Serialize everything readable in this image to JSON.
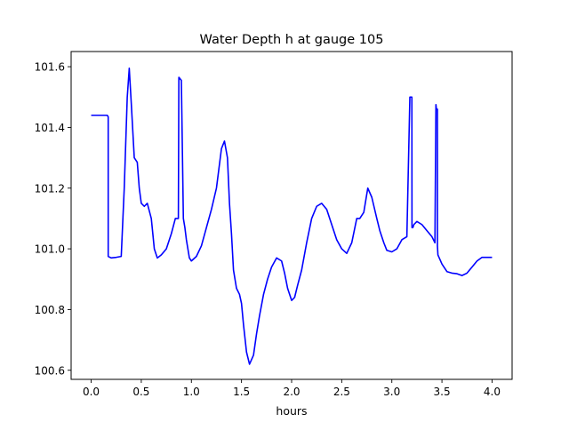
{
  "chart_data": {
    "type": "line",
    "title": "Water Depth h at gauge 105",
    "xlabel": "hours",
    "ylabel": "",
    "xlim": [
      -0.2,
      4.2
    ],
    "ylim": [
      100.57,
      101.65
    ],
    "xticks": [
      0.0,
      0.5,
      1.0,
      1.5,
      2.0,
      2.5,
      3.0,
      3.5,
      4.0
    ],
    "xtick_labels": [
      "0.0",
      "0.5",
      "1.0",
      "1.5",
      "2.0",
      "2.5",
      "3.0",
      "3.5",
      "4.0"
    ],
    "yticks": [
      100.6,
      100.8,
      101.0,
      101.2,
      101.4,
      101.6
    ],
    "ytick_labels": [
      "100.6",
      "100.8",
      "101.0",
      "101.2",
      "101.4",
      "101.6"
    ],
    "grid": false,
    "series": [
      {
        "color": "#0000ff",
        "x": [
          0.0,
          0.1,
          0.16,
          0.17,
          0.17,
          0.2,
          0.25,
          0.3,
          0.33,
          0.36,
          0.38,
          0.4,
          0.43,
          0.46,
          0.48,
          0.5,
          0.53,
          0.56,
          0.6,
          0.63,
          0.66,
          0.7,
          0.75,
          0.8,
          0.84,
          0.87,
          0.875,
          0.875,
          0.9,
          0.92,
          0.93,
          0.935,
          0.95,
          0.98,
          1.0,
          1.05,
          1.1,
          1.15,
          1.2,
          1.25,
          1.3,
          1.33,
          1.36,
          1.38,
          1.4,
          1.42,
          1.45,
          1.48,
          1.5,
          1.52,
          1.55,
          1.58,
          1.62,
          1.65,
          1.68,
          1.72,
          1.76,
          1.8,
          1.85,
          1.9,
          1.93,
          1.96,
          2.0,
          2.03,
          2.06,
          2.1,
          2.15,
          2.2,
          2.25,
          2.3,
          2.35,
          2.4,
          2.45,
          2.5,
          2.55,
          2.6,
          2.65,
          2.68,
          2.72,
          2.76,
          2.8,
          2.85,
          2.88,
          2.92,
          2.95,
          3.0,
          3.05,
          3.1,
          3.15,
          3.18,
          3.2,
          3.201,
          3.21,
          3.22,
          3.25,
          3.3,
          3.35,
          3.4,
          3.43,
          3.44,
          3.445,
          3.455,
          3.455,
          3.46,
          3.5,
          3.55,
          3.6,
          3.65,
          3.7,
          3.75,
          3.8,
          3.85,
          3.9,
          3.95,
          4.0
        ],
        "y": [
          101.44,
          101.44,
          101.44,
          101.435,
          100.975,
          100.97,
          100.972,
          100.975,
          101.2,
          101.5,
          101.595,
          101.48,
          101.3,
          101.285,
          101.2,
          101.15,
          101.14,
          101.15,
          101.1,
          101.0,
          100.97,
          100.98,
          101.0,
          101.05,
          101.1,
          101.1,
          101.565,
          101.565,
          101.555,
          101.1,
          101.08,
          101.07,
          101.03,
          100.97,
          100.96,
          100.975,
          101.01,
          101.07,
          101.13,
          101.2,
          101.33,
          101.355,
          101.3,
          101.15,
          101.05,
          100.93,
          100.87,
          100.85,
          100.82,
          100.75,
          100.66,
          100.62,
          100.65,
          100.72,
          100.78,
          100.85,
          100.9,
          100.94,
          100.97,
          100.96,
          100.92,
          100.87,
          100.83,
          100.84,
          100.88,
          100.93,
          101.02,
          101.1,
          101.14,
          101.15,
          101.13,
          101.08,
          101.03,
          101.0,
          100.985,
          101.02,
          101.1,
          101.1,
          101.12,
          101.2,
          101.17,
          101.1,
          101.06,
          101.02,
          100.995,
          100.99,
          101.0,
          101.03,
          101.04,
          101.5,
          101.5,
          101.07,
          101.07,
          101.08,
          101.09,
          101.08,
          101.06,
          101.04,
          101.02,
          101.475,
          101.46,
          101.46,
          101.01,
          100.98,
          100.95,
          100.925,
          100.92,
          100.918,
          100.912,
          100.92,
          100.94,
          100.96,
          100.972,
          100.972,
          100.972
        ]
      }
    ]
  }
}
